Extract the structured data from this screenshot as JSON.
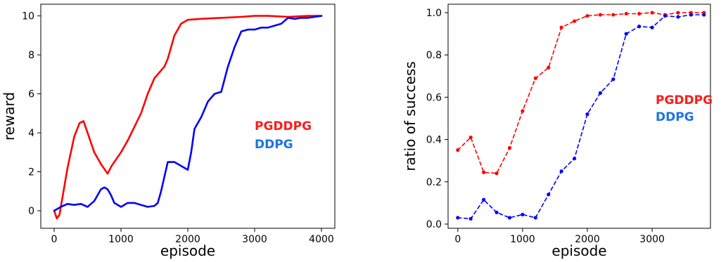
{
  "chart_data": [
    {
      "type": "line",
      "xlabel": "episode",
      "ylabel": "reward",
      "xlim": [
        -200,
        4200
      ],
      "ylim": [
        -0.9,
        10.6
      ],
      "xticks": [
        "0",
        "1000",
        "2000",
        "3000",
        "4000"
      ],
      "yticks": [
        "0",
        "2",
        "4",
        "6",
        "8",
        "10"
      ],
      "legend_placement": "right",
      "series": [
        {
          "name": "PGDDPG",
          "color": "#ff0000",
          "x": [
            0,
            40,
            80,
            120,
            200,
            300,
            380,
            440,
            500,
            600,
            700,
            800,
            860,
            920,
            1000,
            1100,
            1200,
            1300,
            1400,
            1500,
            1550,
            1600,
            1650,
            1700,
            1800,
            1900,
            2000,
            2200,
            2500,
            2800,
            3000,
            3200,
            3500,
            3800,
            4000
          ],
          "values": [
            0.0,
            -0.4,
            -0.2,
            0.6,
            2.2,
            3.8,
            4.5,
            4.6,
            4.0,
            3.0,
            2.4,
            1.9,
            2.3,
            2.6,
            3.0,
            3.6,
            4.3,
            5.0,
            6.0,
            6.8,
            7.0,
            7.2,
            7.4,
            7.8,
            9.0,
            9.6,
            9.8,
            9.85,
            9.9,
            9.95,
            10.0,
            10.0,
            9.95,
            10.0,
            10.0
          ]
        },
        {
          "name": "DDPG",
          "color": "#0000ff",
          "x": [
            0,
            100,
            200,
            300,
            400,
            500,
            600,
            700,
            750,
            800,
            850,
            900,
            1000,
            1100,
            1200,
            1300,
            1400,
            1500,
            1550,
            1600,
            1700,
            1800,
            1900,
            2000,
            2050,
            2100,
            2200,
            2300,
            2400,
            2500,
            2600,
            2700,
            2800,
            2900,
            3000,
            3100,
            3200,
            3300,
            3400,
            3500,
            3600,
            3700,
            3800,
            3900,
            4000
          ],
          "values": [
            0.0,
            0.2,
            0.35,
            0.3,
            0.35,
            0.2,
            0.5,
            1.1,
            1.2,
            1.1,
            0.8,
            0.4,
            0.2,
            0.4,
            0.4,
            0.3,
            0.2,
            0.25,
            0.4,
            1.0,
            2.5,
            2.5,
            2.3,
            2.1,
            3.0,
            4.2,
            4.8,
            5.6,
            6.0,
            6.1,
            7.4,
            8.4,
            9.2,
            9.3,
            9.3,
            9.4,
            9.4,
            9.5,
            9.6,
            9.9,
            9.85,
            9.9,
            9.9,
            9.95,
            10.0
          ]
        }
      ]
    },
    {
      "type": "line",
      "xlabel": "episode",
      "ylabel": "ratio of success",
      "xlim": [
        -150,
        3900
      ],
      "ylim": [
        -0.02,
        1.04
      ],
      "xticks": [
        "0",
        "1000",
        "2000",
        "3000"
      ],
      "yticks": [
        "0.0",
        "0.2",
        "0.4",
        "0.6",
        "0.8",
        "1.0"
      ],
      "legend_placement": "right",
      "series": [
        {
          "name": "PGDDPG",
          "color": "#ff0000",
          "x": [
            0,
            200,
            400,
            600,
            800,
            1000,
            1200,
            1400,
            1600,
            1800,
            2000,
            2200,
            2400,
            2600,
            2800,
            3000,
            3200,
            3400,
            3600,
            3800
          ],
          "values": [
            0.35,
            0.41,
            0.245,
            0.24,
            0.36,
            0.535,
            0.69,
            0.74,
            0.93,
            0.96,
            0.985,
            0.99,
            0.99,
            0.995,
            0.995,
            1.0,
            0.99,
            1.0,
            1.0,
            1.0
          ]
        },
        {
          "name": "DDPG",
          "color": "#0000ff",
          "x": [
            0,
            200,
            400,
            600,
            800,
            1000,
            1200,
            1400,
            1600,
            1800,
            2000,
            2200,
            2400,
            2600,
            2800,
            3000,
            3200,
            3400,
            3600,
            3800
          ],
          "values": [
            0.03,
            0.025,
            0.115,
            0.055,
            0.03,
            0.045,
            0.03,
            0.14,
            0.25,
            0.31,
            0.52,
            0.62,
            0.685,
            0.9,
            0.935,
            0.93,
            0.985,
            0.98,
            0.99,
            0.99
          ]
        }
      ]
    }
  ]
}
